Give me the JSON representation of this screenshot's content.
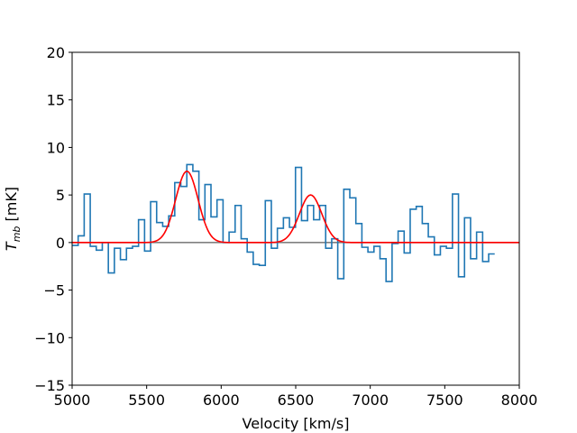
{
  "chart_data": {
    "type": "line",
    "xlabel": "Velocity [km/s]",
    "ylabel_main": "T",
    "ylabel_sub": "mb",
    "ylabel_unit": " [mK]",
    "xlim": [
      5000,
      8000
    ],
    "ylim": [
      -15,
      20
    ],
    "xticks": [
      5000,
      5500,
      6000,
      6500,
      7000,
      7500,
      8000
    ],
    "yticks": [
      -15,
      -10,
      -5,
      0,
      5,
      10,
      15,
      20
    ],
    "grid": false,
    "colors": {
      "spectrum": "#1f77b4",
      "fit": "#ff0000",
      "baseline": "#808080",
      "frame": "#000000"
    },
    "series": [
      {
        "style": "step",
        "bin_width": 40.5,
        "x_start": 5000,
        "values": [
          -0.3,
          0.7,
          5.1,
          -0.4,
          -0.8,
          0.0,
          -3.2,
          -0.6,
          -1.8,
          -0.6,
          -0.4,
          2.4,
          -0.9,
          4.3,
          2.1,
          1.7,
          2.8,
          6.3,
          5.9,
          8.2,
          7.5,
          2.4,
          6.1,
          2.7,
          4.5,
          0.0,
          1.1,
          3.9,
          0.4,
          -1.0,
          -2.3,
          -2.4,
          4.4,
          -0.6,
          1.5,
          2.6,
          1.6,
          7.9,
          2.3,
          3.9,
          2.4,
          3.9,
          -0.6,
          0.4,
          -3.8,
          5.6,
          4.7,
          2.0,
          -0.5,
          -1.0,
          -0.4,
          -1.7,
          -4.1,
          -0.1,
          1.2,
          -1.1,
          3.5,
          3.8,
          2.0,
          0.6,
          -1.3,
          -0.4,
          -0.6,
          5.1,
          -3.6,
          2.6,
          -1.7,
          1.1,
          -2.0,
          -1.2
        ]
      },
      {
        "style": "fit",
        "gaussians": [
          {
            "center": 5770,
            "amplitude": 7.5,
            "sigma": 75
          },
          {
            "center": 6600,
            "amplitude": 5.0,
            "sigma": 75
          }
        ],
        "x_range": [
          5000,
          8000
        ]
      },
      {
        "style": "baseline",
        "value": 0
      }
    ]
  }
}
